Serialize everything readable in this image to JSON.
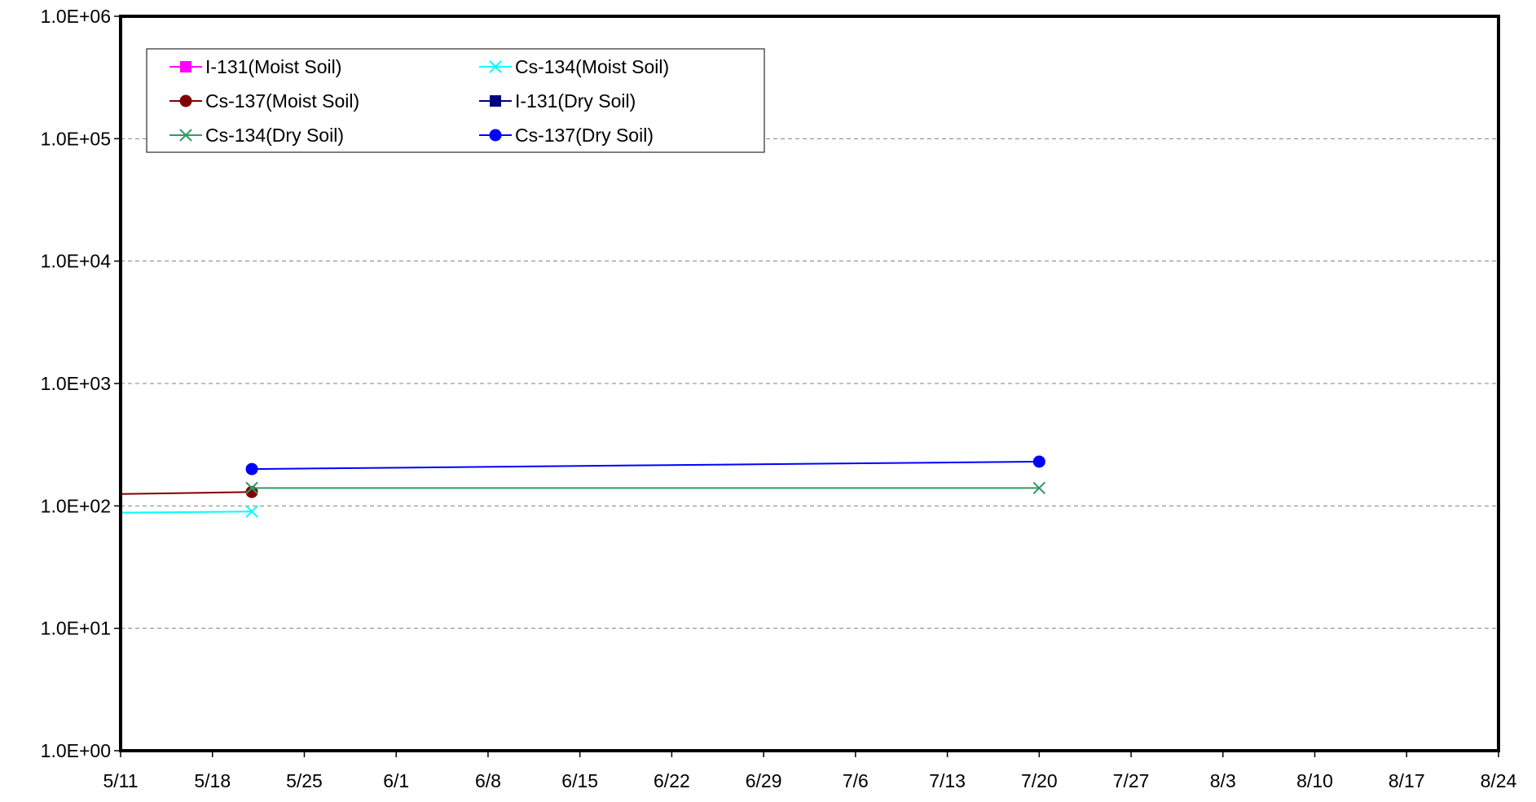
{
  "chart_data": {
    "type": "line",
    "title": "",
    "xlabel": "",
    "ylabel": "",
    "y_scale": "log",
    "ylim": [
      1,
      1000000
    ],
    "xlim": [
      "5/11",
      "8/24"
    ],
    "grid": "horizontal dashed",
    "legend_position": "top-left",
    "x_tick_labels": [
      "5/11",
      "5/18",
      "5/25",
      "6/1",
      "6/8",
      "6/15",
      "6/22",
      "6/29",
      "7/6",
      "7/13",
      "7/20",
      "7/27",
      "8/3",
      "8/10",
      "8/17",
      "8/24"
    ],
    "y_tick_labels": [
      "1.0E+00",
      "1.0E+01",
      "1.0E+02",
      "1.0E+03",
      "1.0E+04",
      "1.0E+05",
      "1.0E+06"
    ],
    "y_tick_values": [
      1,
      10,
      100,
      1000,
      10000,
      100000,
      1000000
    ],
    "series": [
      {
        "name": "I-131(Moist Soil)",
        "color": "#ff00ff",
        "marker": "square",
        "points": []
      },
      {
        "name": "Cs-134(Moist Soil)",
        "color": "#00ffff",
        "marker": "x",
        "points": [
          [
            "5/11",
            88
          ],
          [
            "5/21",
            90
          ]
        ]
      },
      {
        "name": "Cs-137(Moist Soil)",
        "color": "#800000",
        "marker": "circle",
        "points": [
          [
            "5/11",
            125
          ],
          [
            "5/21",
            130
          ]
        ]
      },
      {
        "name": "I-131(Dry Soil)",
        "color": "#000080",
        "marker": "square",
        "points": []
      },
      {
        "name": "Cs-134(Dry Soil)",
        "color": "#339966",
        "marker": "x",
        "points": [
          [
            "5/21",
            140
          ],
          [
            "7/20",
            140
          ]
        ]
      },
      {
        "name": "Cs-137(Dry Soil)",
        "color": "#0000ff",
        "marker": "circle",
        "points": [
          [
            "5/21",
            200
          ],
          [
            "7/20",
            230
          ]
        ]
      }
    ]
  }
}
